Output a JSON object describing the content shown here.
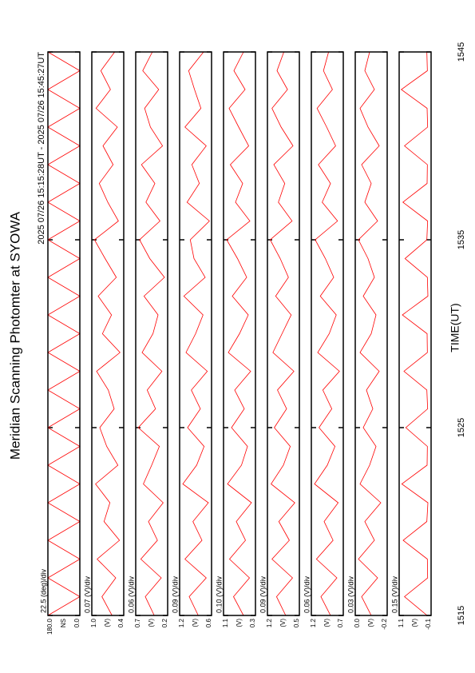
{
  "chart_data": {
    "type": "line",
    "title": "Meridian Scanning Photomter at SYOWA",
    "subtitle": "2025 07/26 15:15:28UT - 2025 07/26 15:45:27UT",
    "xlabel": "TIME(UT)",
    "xlim": [
      1515,
      1545
    ],
    "xticks": [
      1515,
      1525,
      1535,
      1545
    ],
    "x": [
      1515,
      1516,
      1517,
      1518,
      1519,
      1520,
      1521,
      1522,
      1523,
      1524,
      1525,
      1526,
      1527,
      1528,
      1529,
      1530,
      1531,
      1532,
      1533,
      1534,
      1535,
      1536,
      1537,
      1538,
      1539,
      1540,
      1541,
      1542,
      1543,
      1544,
      1545
    ],
    "panels": [
      {
        "annotation": "22.5 (deg)/div",
        "ylabel": "NS",
        "color": "#ff0000",
        "ylim": [
          0,
          180
        ],
        "yticks": [
          {
            "value": 180,
            "label": "180.0"
          },
          {
            "value": 0,
            "label": "0.0"
          }
        ],
        "values": [
          180,
          0,
          180,
          0,
          180,
          0,
          180,
          0,
          180,
          0,
          180,
          0,
          180,
          0,
          180,
          0,
          180,
          0,
          180,
          0,
          180,
          0,
          180,
          0,
          180,
          0,
          180,
          0,
          180,
          0,
          180
        ]
      },
      {
        "annotation": "0.07 (V)/div",
        "ylabel": "(V)",
        "color": "#ff0000",
        "ylim": [
          0.4,
          1.0
        ],
        "yticks": [
          {
            "value": 1.0,
            "label": "1.0"
          },
          0.4
        ],
        "values": [
          0.62,
          0.81,
          0.55,
          0.9,
          0.48,
          0.77,
          0.66,
          0.93,
          0.51,
          0.72,
          0.85,
          0.58,
          0.69,
          0.91,
          0.47,
          0.8,
          0.63,
          0.88,
          0.54,
          0.75,
          0.95,
          0.5,
          0.7,
          0.86,
          0.6,
          0.79,
          0.52,
          0.92,
          0.65,
          0.83,
          0.57
        ]
      },
      {
        "annotation": "0.06 (V)/div",
        "ylabel": "(V)",
        "color": "#ff0000",
        "ylim": [
          0.2,
          0.7
        ],
        "yticks": [
          0.7,
          0.2
        ],
        "values": [
          0.41,
          0.55,
          0.3,
          0.62,
          0.36,
          0.5,
          0.27,
          0.58,
          0.45,
          0.33,
          0.66,
          0.39,
          0.52,
          0.29,
          0.6,
          0.43,
          0.35,
          0.57,
          0.25,
          0.48,
          0.64,
          0.32,
          0.54,
          0.4,
          0.61,
          0.28,
          0.47,
          0.56,
          0.34,
          0.59,
          0.44
        ]
      },
      {
        "annotation": "0.09 (V)/div",
        "ylabel": "(V)",
        "color": "#ff0000",
        "ylim": [
          0.6,
          1.2
        ],
        "yticks": [
          1.2,
          0.6
        ],
        "values": [
          0.85,
          1.02,
          0.7,
          1.1,
          0.78,
          0.95,
          0.66,
          1.14,
          0.88,
          0.74,
          1.05,
          0.81,
          0.98,
          0.68,
          1.08,
          0.9,
          0.76,
          1.12,
          0.72,
          0.93,
          1.0,
          0.64,
          1.06,
          0.83,
          0.97,
          0.7,
          1.1,
          0.8,
          0.92,
          1.03,
          0.75
        ]
      },
      {
        "annotation": "0.10 (V)/div",
        "ylabel": "(V)",
        "color": "#ff0000",
        "ylim": [
          0.3,
          1.1
        ],
        "yticks": [
          1.1,
          0.3
        ],
        "values": [
          0.6,
          0.85,
          0.45,
          0.95,
          0.55,
          0.78,
          0.4,
          1.0,
          0.65,
          0.5,
          0.9,
          0.58,
          0.82,
          0.42,
          0.98,
          0.7,
          0.48,
          0.88,
          0.52,
          0.75,
          1.02,
          0.44,
          0.8,
          0.62,
          0.93,
          0.47,
          0.72,
          0.96,
          0.56,
          0.84,
          0.6
        ]
      },
      {
        "annotation": "0.09 (V)/div",
        "ylabel": "(V)",
        "color": "#ff0000",
        "ylim": [
          0.5,
          1.2
        ],
        "yticks": [
          1.2,
          0.5
        ],
        "values": [
          0.8,
          1.0,
          0.65,
          1.1,
          0.72,
          0.95,
          0.6,
          1.12,
          0.85,
          0.7,
          1.05,
          0.78,
          0.98,
          0.62,
          1.08,
          0.88,
          0.68,
          1.02,
          0.74,
          0.92,
          1.14,
          0.66,
          0.96,
          0.82,
          1.06,
          0.64,
          0.9,
          1.1,
          0.76,
          0.99,
          0.84
        ]
      },
      {
        "annotation": "0.06 (V)/div",
        "ylabel": "(V)",
        "color": "#ff0000",
        "ylim": [
          0.7,
          1.2
        ],
        "yticks": [
          1.2,
          0.7
        ],
        "values": [
          0.9,
          1.05,
          0.8,
          1.12,
          0.86,
          1.0,
          0.78,
          1.15,
          0.95,
          0.83,
          1.08,
          0.88,
          1.02,
          0.76,
          1.1,
          0.92,
          0.81,
          1.06,
          0.85,
          0.98,
          1.14,
          0.79,
          1.03,
          0.9,
          1.09,
          0.82,
          0.96,
          1.11,
          0.87,
          1.01,
          0.93
        ]
      },
      {
        "annotation": "0.03 (V)/div",
        "ylabel": "(V)",
        "color": "#ff0000",
        "ylim": [
          -0.2,
          0.0
        ],
        "yticks": [
          {
            "value": 0.0,
            "label": "0.0"
          },
          -0.2
        ],
        "values": [
          -0.1,
          -0.04,
          -0.14,
          -0.02,
          -0.12,
          -0.06,
          -0.16,
          -0.03,
          -0.09,
          -0.13,
          -0.05,
          -0.11,
          -0.07,
          -0.15,
          -0.03,
          -0.1,
          -0.13,
          -0.05,
          -0.12,
          -0.08,
          -0.02,
          -0.14,
          -0.06,
          -0.1,
          -0.04,
          -0.15,
          -0.08,
          -0.03,
          -0.12,
          -0.06,
          -0.09
        ]
      },
      {
        "annotation": "0.15 (V)/div",
        "ylabel": "(V)",
        "color": "#ff0000",
        "ylim": [
          -0.1,
          1.1
        ],
        "yticks": [
          1.1,
          -0.1
        ],
        "values": [
          0.05,
          0.9,
          0.03,
          0.04,
          0.95,
          0.06,
          0.02,
          1.0,
          0.05,
          0.04,
          0.85,
          0.03,
          0.06,
          0.92,
          0.04,
          0.05,
          0.98,
          0.02,
          0.04,
          0.88,
          0.06,
          0.03,
          0.96,
          0.05,
          0.04,
          0.9,
          0.03,
          0.05,
          1.02,
          0.04,
          0.06
        ]
      }
    ]
  }
}
